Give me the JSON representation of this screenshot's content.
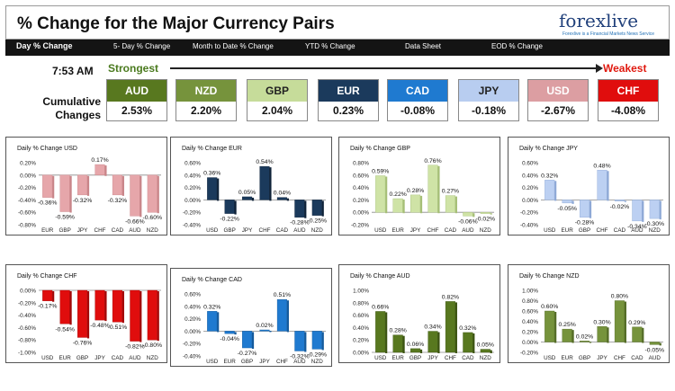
{
  "header": {
    "title": "% Change for the Major Currency Pairs",
    "logo": {
      "text": "forexlive",
      "tagline": "Forexlive is a Financial Markets News Service"
    }
  },
  "nav": {
    "items": [
      {
        "label": "Day % Change",
        "active": true
      },
      {
        "label": "5- Day % Change",
        "active": false
      },
      {
        "label": "Month to Date % Change",
        "active": false
      },
      {
        "label": "YTD % Change",
        "active": false
      },
      {
        "label": "Data Sheet",
        "active": false
      },
      {
        "label": "EOD % Change",
        "active": false
      }
    ]
  },
  "strength": {
    "time": "7:53 AM",
    "strongest": "Strongest",
    "weakest": "Weakest",
    "cumulative_label_line1": "Cumulative",
    "cumulative_label_line2": "Changes",
    "currencies": [
      {
        "name": "AUD",
        "value": "2.53%",
        "color": "#58781f"
      },
      {
        "name": "NZD",
        "value": "2.20%",
        "color": "#76933c"
      },
      {
        "name": "GBP",
        "value": "2.04%",
        "color": "#c6dc9a"
      },
      {
        "name": "EUR",
        "value": "0.23%",
        "color": "#1b3a5c"
      },
      {
        "name": "CAD",
        "value": "-0.08%",
        "color": "#1f7ad0"
      },
      {
        "name": "JPY",
        "value": "-0.18%",
        "color": "#b8cdf0"
      },
      {
        "name": "USD",
        "value": "-2.67%",
        "color": "#dc9ea2"
      },
      {
        "name": "CHF",
        "value": "-4.08%",
        "color": "#e00d0d"
      }
    ]
  },
  "chart_data": [
    {
      "type": "bar",
      "title": "Daily % Change USD",
      "categories": [
        "EUR",
        "GBP",
        "JPY",
        "CHF",
        "CAD",
        "AUD",
        "NZD"
      ],
      "values": [
        -0.36,
        -0.59,
        -0.32,
        0.17,
        -0.32,
        -0.66,
        -0.6
      ],
      "labels": [
        "-0.36%",
        "-0.59%",
        "-0.32%",
        "0.17%",
        "-0.32%",
        "-0.66%",
        "-0.60%"
      ],
      "ylim": [
        -0.8,
        0.2
      ],
      "ticks": [
        "0.20%",
        "0.00%",
        "-0.20%",
        "-0.40%",
        "-0.60%",
        "-0.80%"
      ],
      "color": "#e6a6aa",
      "color_dark": "#c98589"
    },
    {
      "type": "bar",
      "title": "Daily % Change EUR",
      "categories": [
        "USD",
        "GBP",
        "JPY",
        "CHF",
        "CAD",
        "AUD",
        "NZD"
      ],
      "values": [
        0.36,
        -0.22,
        0.05,
        0.54,
        0.04,
        -0.28,
        -0.25
      ],
      "labels": [
        "0.36%",
        "-0.22%",
        "0.05%",
        "0.54%",
        "0.04%",
        "-0.28%",
        "-0.25%"
      ],
      "ylim": [
        -0.4,
        0.6
      ],
      "ticks": [
        "0.60%",
        "0.40%",
        "0.20%",
        "0.00%",
        "-0.20%",
        "-0.40%"
      ],
      "color": "#1b3a5c",
      "color_dark": "#0f2238"
    },
    {
      "type": "bar",
      "title": "Daily % Change GBP",
      "categories": [
        "USD",
        "EUR",
        "JPY",
        "CHF",
        "CAD",
        "AUD",
        "NZD"
      ],
      "values": [
        0.59,
        0.22,
        0.28,
        0.76,
        0.27,
        -0.06,
        -0.02
      ],
      "labels": [
        "0.59%",
        "0.22%",
        "0.28%",
        "0.76%",
        "0.27%",
        "-0.06%",
        "-0.02%"
      ],
      "ylim": [
        -0.2,
        0.8
      ],
      "ticks": [
        "0.80%",
        "0.60%",
        "0.40%",
        "0.20%",
        "0.00%",
        "-0.20%"
      ],
      "color": "#cfe3a6",
      "color_dark": "#a6bf77"
    },
    {
      "type": "bar",
      "title": "Daily % Change JPY",
      "categories": [
        "USD",
        "EUR",
        "GBP",
        "CHF",
        "CAD",
        "AUD",
        "NZD"
      ],
      "values": [
        0.32,
        -0.05,
        -0.28,
        0.48,
        -0.02,
        -0.34,
        -0.3
      ],
      "labels": [
        "0.32%",
        "-0.05%",
        "-0.28%",
        "0.48%",
        "-0.02%",
        "-0.34%",
        "-0.30%"
      ],
      "ylim": [
        -0.4,
        0.6
      ],
      "ticks": [
        "0.60%",
        "0.40%",
        "0.20%",
        "0.00%",
        "-0.20%",
        "-0.40%"
      ],
      "color": "#bcd0f2",
      "color_dark": "#8ea9d6"
    },
    {
      "type": "bar",
      "title": "Daily % Change CHF",
      "categories": [
        "USD",
        "EUR",
        "GBP",
        "JPY",
        "CAD",
        "AUD",
        "NZD"
      ],
      "values": [
        -0.17,
        -0.54,
        -0.76,
        -0.48,
        -0.51,
        -0.82,
        -0.8
      ],
      "labels": [
        "-0.17%",
        "-0.54%",
        "-0.76%",
        "-0.48%",
        "-0.51%",
        "-0.82%",
        "-0.80%"
      ],
      "ylim": [
        -1.0,
        0.0
      ],
      "ticks": [
        "0.00%",
        "-0.20%",
        "-0.40%",
        "-0.60%",
        "-0.80%",
        "-1.00%"
      ],
      "color": "#e00d0d",
      "color_dark": "#a30808"
    },
    {
      "type": "bar",
      "title": "Daily % Change CAD",
      "categories": [
        "USD",
        "EUR",
        "GBP",
        "JPY",
        "CHF",
        "AUD",
        "NZD"
      ],
      "values": [
        0.32,
        -0.04,
        -0.27,
        0.02,
        0.51,
        -0.32,
        -0.29
      ],
      "labels": [
        "0.32%",
        "-0.04%",
        "-0.27%",
        "0.02%",
        "0.51%",
        "-0.32%",
        "-0.29%"
      ],
      "ylim": [
        -0.4,
        0.6
      ],
      "ticks": [
        "0.60%",
        "0.40%",
        "0.20%",
        "0.00%",
        "-0.20%",
        "-0.40%"
      ],
      "color": "#1f7ad0",
      "color_dark": "#145a9c"
    },
    {
      "type": "bar",
      "title": "Daily % Change AUD",
      "categories": [
        "USD",
        "EUR",
        "GBP",
        "JPY",
        "CHF",
        "CAD",
        "NZD"
      ],
      "values": [
        0.66,
        0.28,
        0.06,
        0.34,
        0.82,
        0.32,
        0.05
      ],
      "labels": [
        "0.66%",
        "0.28%",
        "0.06%",
        "0.34%",
        "0.82%",
        "0.32%",
        "0.05%"
      ],
      "ylim": [
        0.0,
        1.0
      ],
      "ticks": [
        "1.00%",
        "0.80%",
        "0.60%",
        "0.40%",
        "0.20%",
        "0.00%"
      ],
      "color": "#58781f",
      "color_dark": "#3c5412"
    },
    {
      "type": "bar",
      "title": "Daily % Change NZD",
      "categories": [
        "USD",
        "EUR",
        "GBP",
        "JPY",
        "CHF",
        "CAD",
        "AUD"
      ],
      "values": [
        0.6,
        0.25,
        0.02,
        0.3,
        0.8,
        0.29,
        -0.05
      ],
      "labels": [
        "0.60%",
        "0.25%",
        "0.02%",
        "0.30%",
        "0.80%",
        "0.29%",
        "-0.05%"
      ],
      "ylim": [
        -0.2,
        1.0
      ],
      "ticks": [
        "1.00%",
        "0.80%",
        "0.60%",
        "0.40%",
        "0.20%",
        "0.00%",
        "-0.20%"
      ],
      "color": "#76933c",
      "color_dark": "#546c26"
    }
  ]
}
